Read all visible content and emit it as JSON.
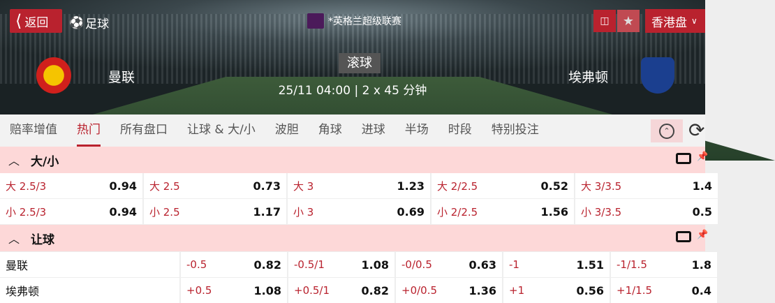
{
  "header": {
    "back_label": "返回",
    "sport_label": "足球",
    "league": "*英格兰超级联赛",
    "odds_format": "香港盘",
    "home_team": "曼联",
    "away_team": "埃弗顿",
    "status": "滚球",
    "datetime": "25/11 04:00",
    "duration": "2 x 45 分钟",
    "icons": [
      "chevron-left-icon",
      "soccer-ball-icon",
      "premier-league-logo",
      "pitch-icon",
      "star-icon",
      "chevron-down-icon"
    ]
  },
  "tabs": [
    {
      "label": "赔率增值"
    },
    {
      "label": "热门",
      "active": true
    },
    {
      "label": "所有盘口"
    },
    {
      "label": "让球 & 大/小"
    },
    {
      "label": "波胆"
    },
    {
      "label": "角球"
    },
    {
      "label": "进球"
    },
    {
      "label": "半场"
    },
    {
      "label": "时段"
    },
    {
      "label": "特别投注"
    }
  ],
  "colors": {
    "accent": "#b9222e",
    "section_bg": "#fdd8d8",
    "tab_bg": "#f2f2f2"
  },
  "sections": [
    {
      "title": "大/小",
      "rows": [
        [
          {
            "label": "大 2.5/3",
            "odd": "0.94"
          },
          {
            "label": "大 2.5",
            "odd": "0.73"
          },
          {
            "label": "大 3",
            "odd": "1.23"
          },
          {
            "label": "大 2/2.5",
            "odd": "0.52"
          },
          {
            "label": "大 3/3.5",
            "odd": "1.4"
          }
        ],
        [
          {
            "label": "小 2.5/3",
            "odd": "0.94"
          },
          {
            "label": "小 2.5",
            "odd": "1.17"
          },
          {
            "label": "小 3",
            "odd": "0.69"
          },
          {
            "label": "小 2/2.5",
            "odd": "1.56"
          },
          {
            "label": "小 3/3.5",
            "odd": "0.5"
          }
        ]
      ]
    },
    {
      "title": "让球",
      "rows": [
        {
          "team": "曼联",
          "cells": [
            {
              "label": "-0.5",
              "odd": "0.82"
            },
            {
              "label": "-0.5/1",
              "odd": "1.08"
            },
            {
              "label": "-0/0.5",
              "odd": "0.63"
            },
            {
              "label": "-1",
              "odd": "1.51"
            },
            {
              "label": "-1/1.5",
              "odd": "1.8"
            }
          ]
        },
        {
          "team": "埃弗顿",
          "cells": [
            {
              "label": "+0.5",
              "odd": "1.08"
            },
            {
              "label": "+0.5/1",
              "odd": "0.82"
            },
            {
              "label": "+0/0.5",
              "odd": "1.36"
            },
            {
              "label": "+1",
              "odd": "0.56"
            },
            {
              "label": "+1/1.5",
              "odd": "0.4"
            }
          ]
        }
      ]
    }
  ]
}
